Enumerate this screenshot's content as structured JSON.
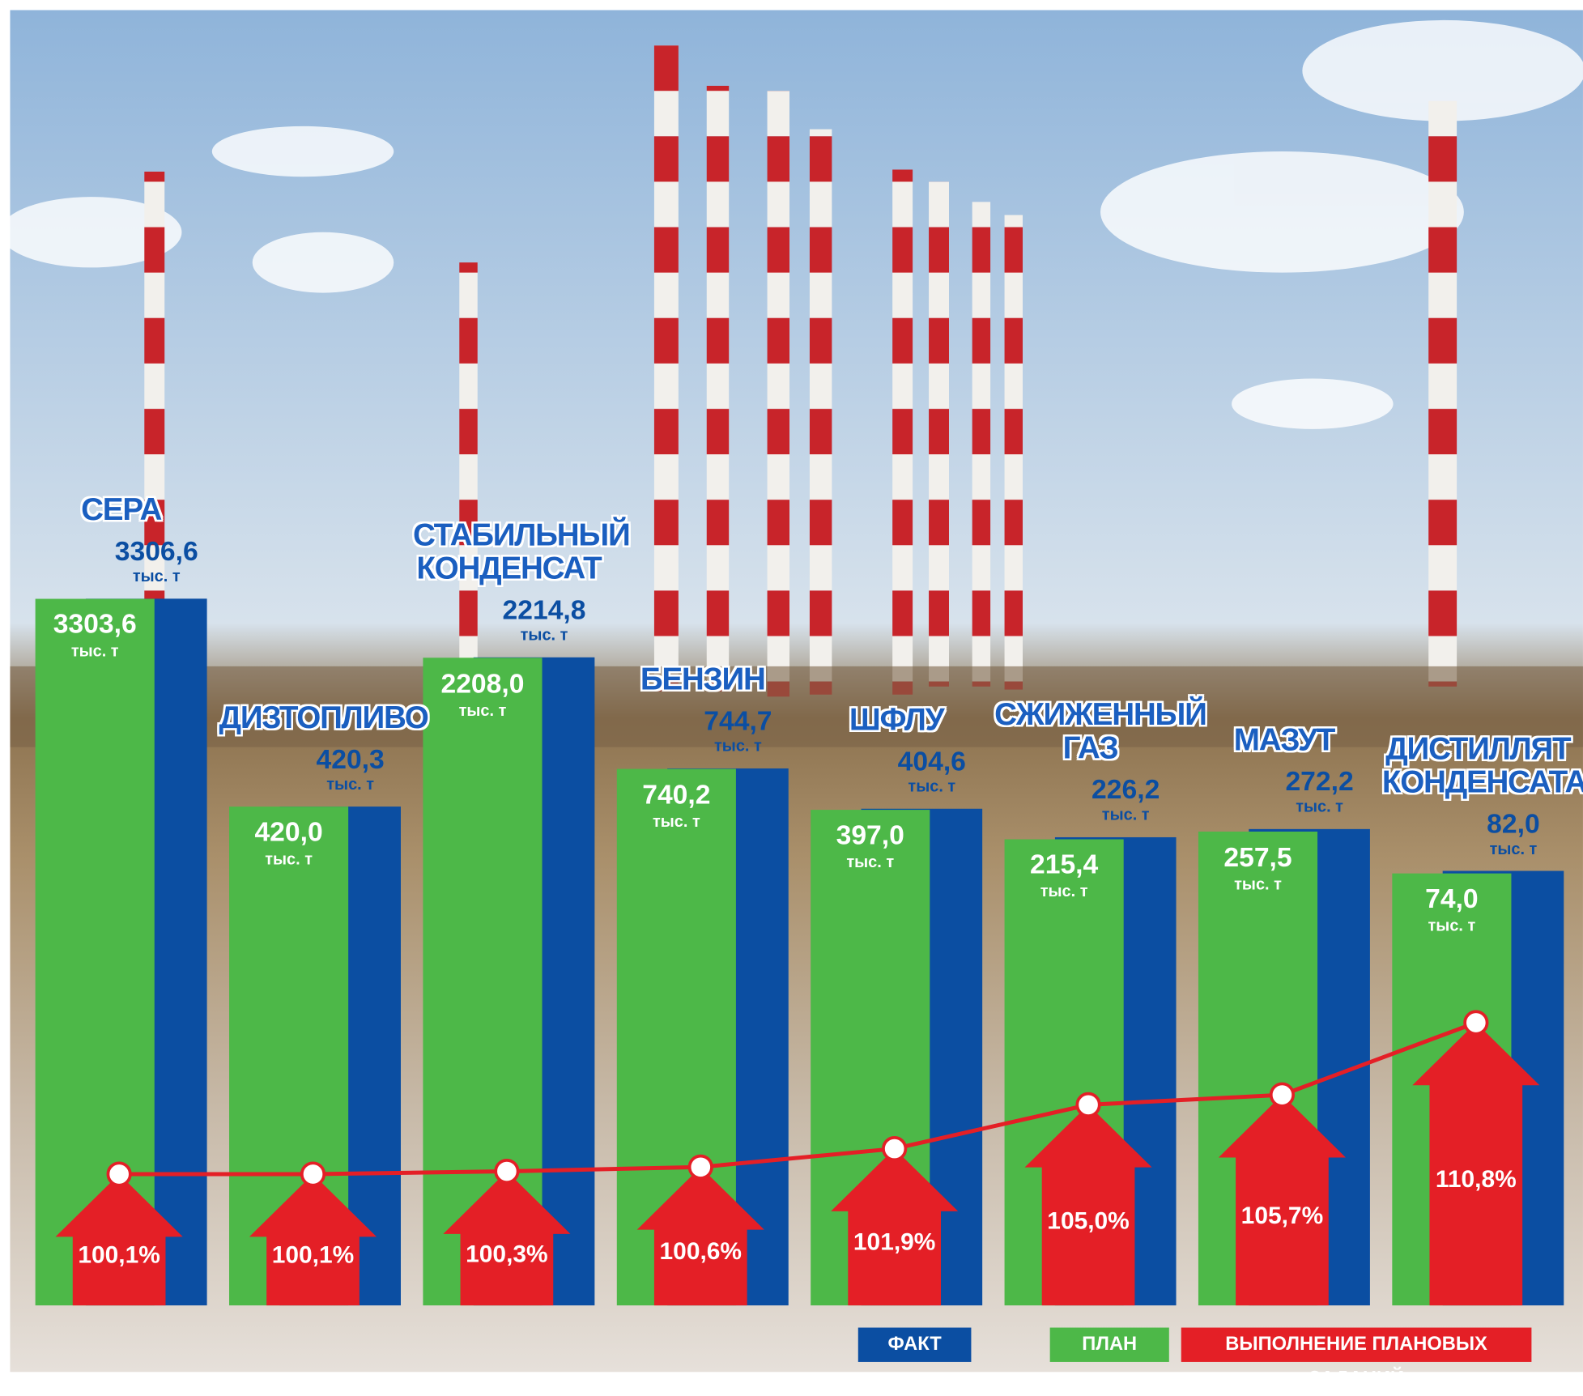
{
  "chart_data": {
    "type": "bar",
    "categories": [
      "СЕРА",
      "ДИЗТОПЛИВО",
      "СТАБИЛЬНЫЙ КОНДЕНСАТ",
      "БЕНЗИН",
      "ШФЛУ",
      "СЖИЖЕННЫЙ ГАЗ",
      "МАЗУТ",
      "ДИСТИЛЛЯТ КОНДЕНСАТА"
    ],
    "unit": "тыс. т",
    "series": [
      {
        "name": "ФАКТ",
        "color": "#0b4ea2",
        "values": [
          3306.6,
          420.3,
          2214.8,
          744.7,
          404.6,
          226.2,
          272.2,
          82.0
        ],
        "value_labels": [
          "3306,6",
          "420,3",
          "2214,8",
          "744,7",
          "404,6",
          "226,2",
          "272,2",
          "82,0"
        ]
      },
      {
        "name": "ПЛАН",
        "color": "#4db848",
        "values": [
          3303.6,
          420.0,
          2208.0,
          740.2,
          397.0,
          215.4,
          257.5,
          74.0
        ],
        "value_labels": [
          "3303,6",
          "420,0",
          "2208,0",
          "740,2",
          "397,0",
          "215,4",
          "257,5",
          "74,0"
        ]
      },
      {
        "name": "ВЫПОЛНЕНИЕ ПЛАНОВЫХ ЗАДАНИЙ",
        "color": "#e41f26",
        "values": [
          100.1,
          100.1,
          100.3,
          100.6,
          101.9,
          105.0,
          105.7,
          110.8
        ],
        "value_labels": [
          "100,1%",
          "100,1%",
          "100,3%",
          "100,6%",
          "101,9%",
          "105,0%",
          "105,7%",
          "110,8%"
        ]
      }
    ]
  }
}
